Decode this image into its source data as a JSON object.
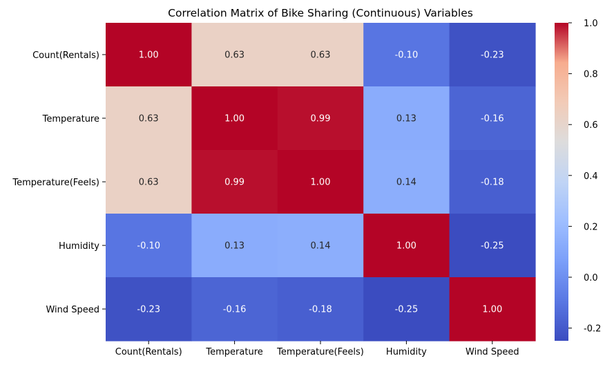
{
  "chart_data": {
    "type": "heatmap",
    "title": "Correlation Matrix of Bike Sharing  (Continuous) Variables",
    "row_labels": [
      "Count(Rentals)",
      "Temperature",
      "Temperature(Feels)",
      "Humidity",
      "Wind Speed"
    ],
    "col_labels": [
      "Count(Rentals)",
      "Temperature",
      "Temperature(Feels)",
      "Humidity",
      "Wind Speed"
    ],
    "values": [
      [
        1.0,
        0.63,
        0.63,
        -0.1,
        -0.23
      ],
      [
        0.63,
        1.0,
        0.99,
        0.13,
        -0.16
      ],
      [
        0.63,
        0.99,
        1.0,
        0.14,
        -0.18
      ],
      [
        -0.1,
        0.13,
        0.14,
        1.0,
        -0.25
      ],
      [
        -0.23,
        -0.16,
        -0.18,
        -0.25,
        1.0
      ]
    ],
    "colormap": "coolwarm",
    "vmin": -0.25,
    "vmax": 1.0,
    "colorbar_ticks": [
      "1.0",
      "0.8",
      "0.6",
      "0.4",
      "0.2",
      "0.0",
      "-0.2"
    ],
    "annotation_format": "0.00"
  }
}
